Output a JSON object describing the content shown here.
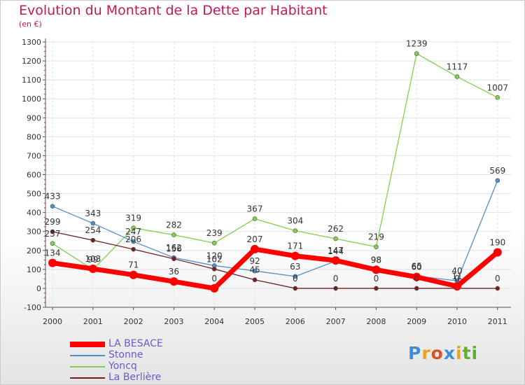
{
  "chart_data": {
    "type": "line",
    "title": "Evolution du Montant de la Dette par Habitant",
    "unit_label": "(en €)",
    "xlabel": "",
    "ylabel": "",
    "x": [
      "2000",
      "2001",
      "2002",
      "2003",
      "2004",
      "2005",
      "2006",
      "2007",
      "2008",
      "2009",
      "2010",
      "2011"
    ],
    "ylim": [
      -100,
      1300
    ],
    "yticks": [
      -100,
      0,
      100,
      200,
      300,
      400,
      500,
      600,
      700,
      800,
      900,
      1000,
      1100,
      1200,
      1300
    ],
    "grid": true,
    "legend_position": "bottom-left",
    "series": [
      {
        "name": "LA BESACE",
        "color": "#ff0000",
        "values": [
          134,
          103,
          71,
          36,
          0,
          207,
          171,
          147,
          98,
          60,
          11,
          190
        ]
      },
      {
        "name": "Stonne",
        "color": "#4f8fc8",
        "values": [
          433,
          343,
          247,
          162,
          120,
          92,
          63,
          144,
          98,
          65,
          40,
          569
        ]
      },
      {
        "name": "Yoncq",
        "color": "#80d050",
        "values": [
          237,
          99,
          319,
          282,
          239,
          367,
          304,
          262,
          219,
          1239,
          1117,
          1007
        ]
      },
      {
        "name": "La Berlière",
        "color": "#702020",
        "values": [
          299,
          254,
          206,
          156,
          102,
          45,
          0,
          0,
          0,
          0,
          0,
          0
        ]
      }
    ]
  },
  "logo": {
    "letters": [
      "P",
      "r",
      "o",
      "x",
      "i",
      "t",
      "i"
    ]
  }
}
